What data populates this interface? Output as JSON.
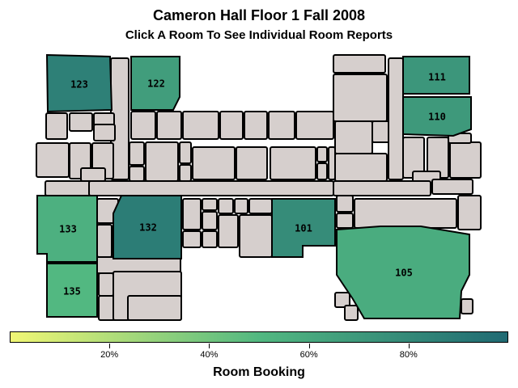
{
  "header": {
    "title": "Cameron Hall Floor 1 Fall 2008",
    "subtitle": "Click A Room To See Individual Room Reports"
  },
  "colors": {
    "unassigned_room": "#d6cfcd",
    "scale_low": "#f1f775",
    "scale_mid": "#52b881",
    "scale_high": "#206a73"
  },
  "map": {
    "rooms": [
      {
        "number": "123",
        "booking": 0.86
      },
      {
        "number": "122",
        "booking": 0.67
      },
      {
        "number": "111",
        "booking": 0.72
      },
      {
        "number": "110",
        "booking": 0.7
      },
      {
        "number": "133",
        "booking": 0.55
      },
      {
        "number": "132",
        "booking": 0.88
      },
      {
        "number": "101",
        "booking": 0.78
      },
      {
        "number": "105",
        "booking": 0.58
      },
      {
        "number": "135",
        "booking": 0.5
      }
    ]
  },
  "legend": {
    "title": "Room Booking",
    "ticks": [
      "20%",
      "40%",
      "60%",
      "80%"
    ],
    "tick_values": [
      0.2,
      0.4,
      0.6,
      0.8
    ],
    "range": [
      0,
      1
    ]
  }
}
